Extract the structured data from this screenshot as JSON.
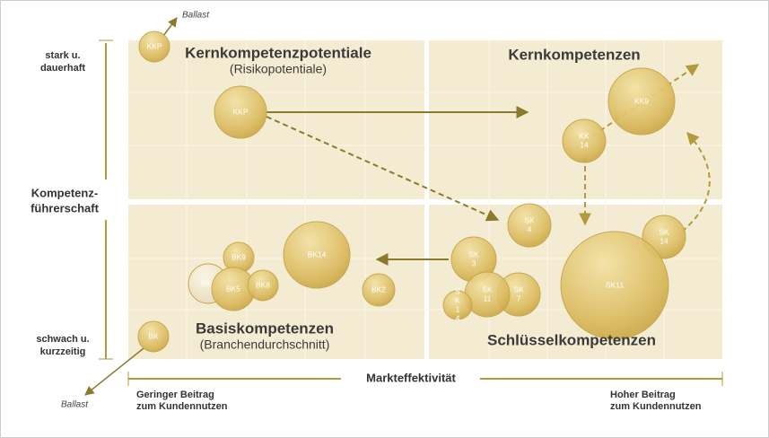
{
  "axes": {
    "y": {
      "top": [
        "stark u.",
        "dauerhaft"
      ],
      "title": [
        "Kompetenz-",
        "führerschaft"
      ],
      "bottom": [
        "schwach u.",
        "kurzzeitig"
      ]
    },
    "x": {
      "title": "Markteffektivität",
      "left": [
        "Geringer Beitrag",
        "zum Kundennutzen"
      ],
      "right": [
        "Hoher Beitrag",
        "zum Kundennutzen"
      ]
    }
  },
  "quadrants": {
    "top_left": {
      "title": "Kernkompetenzpotentiale",
      "subtitle": "(Risikopotentiale)"
    },
    "top_right": {
      "title": "Kernkompetenzen"
    },
    "bottom_left": {
      "title": "Basiskompetenzen",
      "subtitle": "(Branchendurchschnitt)"
    },
    "bottom_right": {
      "title": "Schlüsselkompetenzen"
    }
  },
  "ballast": {
    "top": "Ballast",
    "bottom": "Ballast"
  },
  "bubbles": [
    {
      "lines": [
        "KKP"
      ]
    },
    {
      "lines": [
        "KKP"
      ]
    },
    {
      "lines": [
        "KK9"
      ]
    },
    {
      "lines": [
        "KK",
        "14"
      ]
    },
    {
      "lines": [
        "SK",
        "4"
      ]
    },
    {
      "lines": [
        "SK",
        "14"
      ]
    },
    {
      "lines": [
        "SK11"
      ]
    },
    {
      "lines": [
        "SK",
        "3"
      ]
    },
    {
      "lines": [
        "SK",
        "7"
      ]
    },
    {
      "lines": [
        "SK",
        "11"
      ]
    },
    {
      "lines": [
        "S",
        "K",
        "1",
        "4"
      ]
    },
    {
      "lines": [
        "BK14"
      ]
    },
    {
      "lines": [
        "BK9"
      ]
    },
    {
      "lines": [
        "BK6"
      ]
    },
    {
      "lines": [
        "BK5"
      ]
    },
    {
      "lines": [
        "BK8"
      ]
    },
    {
      "lines": [
        "BK2"
      ]
    },
    {
      "lines": [
        "BK"
      ]
    }
  ]
}
